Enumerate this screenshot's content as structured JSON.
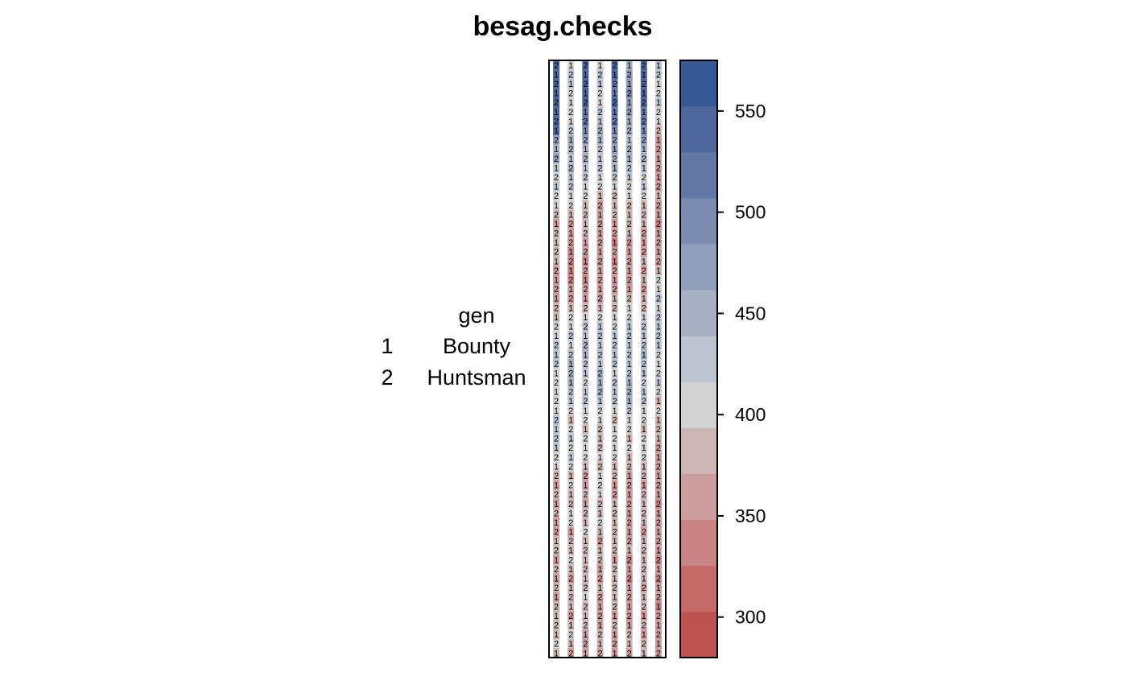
{
  "chart_data": {
    "type": "heatmap",
    "title": "besag.checks",
    "key": {
      "heading": "gen",
      "entries": [
        {
          "code": "1",
          "name": "Bounty"
        },
        {
          "code": "2",
          "name": "Huntsman"
        }
      ]
    },
    "n_rows": 64,
    "cols_x": [
      1,
      2,
      3,
      4,
      5,
      6,
      7,
      8
    ],
    "rows_y": [
      1,
      2,
      3,
      4,
      5,
      6,
      7,
      8,
      9,
      10,
      11,
      12,
      13,
      14,
      15,
      16,
      17,
      18,
      19,
      20,
      21,
      22,
      23,
      24,
      25,
      26,
      27,
      28,
      29,
      30,
      31,
      32,
      33,
      34,
      35,
      36,
      37,
      38,
      39,
      40,
      41,
      42,
      43,
      44,
      45,
      46,
      47,
      48,
      49,
      50,
      51,
      52,
      53,
      54,
      55,
      56,
      57,
      58,
      59,
      60,
      61,
      62,
      63,
      64
    ],
    "plotted_columns": [
      {
        "col": 1,
        "yield": [
          540,
          545,
          540,
          540,
          550,
          540,
          545,
          540,
          470,
          460,
          480,
          430,
          410,
          420,
          400,
          410,
          380,
          370,
          390,
          380,
          380,
          390,
          360,
          360,
          360,
          370,
          380,
          390,
          410,
          400,
          420,
          430,
          430,
          410,
          400,
          410,
          400,
          410,
          420,
          430,
          420,
          420,
          410,
          400,
          380,
          370,
          380,
          360,
          380,
          360,
          370,
          380,
          380,
          370,
          380,
          360,
          390,
          370,
          390,
          380,
          380,
          380,
          400,
          390
        ]
      },
      {
        "col": 2,
        "yield": [
          410,
          420,
          420,
          410,
          400,
          400,
          410,
          430,
          440,
          450,
          430,
          440,
          430,
          420,
          410,
          410,
          380,
          370,
          370,
          360,
          340,
          340,
          330,
          340,
          350,
          360,
          380,
          400,
          410,
          420,
          410,
          420,
          440,
          450,
          440,
          430,
          420,
          410,
          390,
          410,
          420,
          410,
          420,
          400,
          390,
          400,
          380,
          390,
          400,
          410,
          370,
          380,
          380,
          400,
          390,
          360,
          380,
          380,
          390,
          370,
          380,
          400,
          380,
          360
        ]
      },
      {
        "col": 3,
        "yield": [
          540,
          540,
          530,
          530,
          540,
          520,
          510,
          500,
          470,
          460,
          440,
          430,
          420,
          410,
          400,
          380,
          380,
          390,
          390,
          370,
          360,
          340,
          350,
          340,
          360,
          370,
          380,
          400,
          420,
          430,
          440,
          440,
          420,
          430,
          410,
          420,
          430,
          410,
          400,
          390,
          410,
          410,
          400,
          380,
          370,
          360,
          380,
          370,
          380,
          390,
          400,
          380,
          380,
          390,
          380,
          380,
          390,
          400,
          390,
          380,
          380,
          370,
          370,
          360
        ]
      },
      {
        "col": 4,
        "yield": [
          410,
          420,
          430,
          410,
          400,
          420,
          420,
          440,
          440,
          430,
          420,
          420,
          410,
          400,
          380,
          360,
          350,
          370,
          360,
          350,
          350,
          360,
          350,
          350,
          360,
          370,
          390,
          410,
          420,
          430,
          430,
          420,
          420,
          440,
          450,
          440,
          420,
          410,
          400,
          380,
          390,
          380,
          400,
          380,
          400,
          410,
          400,
          380,
          390,
          400,
          380,
          370,
          380,
          390,
          360,
          370,
          380,
          370,
          360,
          360,
          360,
          380,
          380,
          370
        ]
      },
      {
        "col": 5,
        "yield": [
          540,
          530,
          520,
          520,
          530,
          520,
          510,
          490,
          480,
          470,
          450,
          440,
          420,
          410,
          390,
          380,
          390,
          370,
          360,
          340,
          350,
          340,
          370,
          360,
          370,
          380,
          390,
          410,
          410,
          430,
          430,
          420,
          430,
          410,
          430,
          430,
          420,
          410,
          390,
          400,
          410,
          400,
          410,
          390,
          380,
          370,
          370,
          390,
          380,
          390,
          380,
          380,
          390,
          370,
          380,
          390,
          380,
          390,
          380,
          370,
          380,
          360,
          360,
          370
        ]
      },
      {
        "col": 6,
        "yield": [
          460,
          470,
          470,
          490,
          480,
          470,
          460,
          440,
          430,
          440,
          450,
          430,
          420,
          410,
          410,
          390,
          380,
          390,
          380,
          370,
          370,
          370,
          350,
          360,
          370,
          390,
          400,
          410,
          420,
          430,
          420,
          430,
          420,
          430,
          450,
          440,
          440,
          420,
          410,
          400,
          390,
          400,
          390,
          380,
          370,
          360,
          370,
          350,
          370,
          360,
          360,
          350,
          380,
          340,
          360,
          340,
          370,
          360,
          370,
          360,
          370,
          380,
          380,
          370
        ]
      },
      {
        "col": 7,
        "yield": [
          530,
          540,
          530,
          540,
          530,
          520,
          510,
          490,
          480,
          460,
          450,
          430,
          410,
          420,
          410,
          380,
          390,
          380,
          370,
          360,
          360,
          380,
          370,
          380,
          370,
          380,
          390,
          410,
          420,
          430,
          420,
          440,
          430,
          420,
          410,
          420,
          420,
          410,
          400,
          390,
          410,
          400,
          410,
          390,
          380,
          370,
          390,
          380,
          390,
          380,
          370,
          380,
          390,
          380,
          380,
          380,
          370,
          390,
          380,
          370,
          380,
          370,
          380,
          380
        ]
      },
      {
        "col": 8,
        "yield": [
          430,
          420,
          410,
          410,
          420,
          400,
          400,
          390,
          370,
          360,
          360,
          350,
          370,
          360,
          380,
          370,
          360,
          340,
          350,
          360,
          360,
          370,
          380,
          400,
          410,
          420,
          410,
          420,
          430,
          430,
          420,
          410,
          400,
          410,
          420,
          400,
          390,
          400,
          380,
          390,
          380,
          370,
          360,
          370,
          360,
          350,
          360,
          340,
          360,
          350,
          360,
          370,
          360,
          340,
          350,
          340,
          350,
          360,
          340,
          350,
          350,
          360,
          360,
          370
        ]
      }
    ],
    "colorkey": {
      "range": [
        280,
        575
      ],
      "ticks": [
        300,
        350,
        400,
        450,
        500,
        550
      ],
      "breaks": [
        280,
        302.7,
        325.4,
        348.1,
        370.8,
        393.5,
        416.2,
        438.9,
        461.6,
        484.3,
        507,
        529.7,
        552.4,
        575
      ],
      "colors": [
        "#BE5251",
        "#C46A69",
        "#C88584",
        "#CB9D9C",
        "#CFB6B6",
        "#D3D3D3",
        "#BEC4CF",
        "#A7B0C4",
        "#909FBB",
        "#7A8DB1",
        "#6478A7",
        "#4D679D",
        "#385894"
      ]
    },
    "colors": {
      "low": "#BE5251",
      "mid": "#D3D3D3",
      "high": "#385894"
    }
  }
}
